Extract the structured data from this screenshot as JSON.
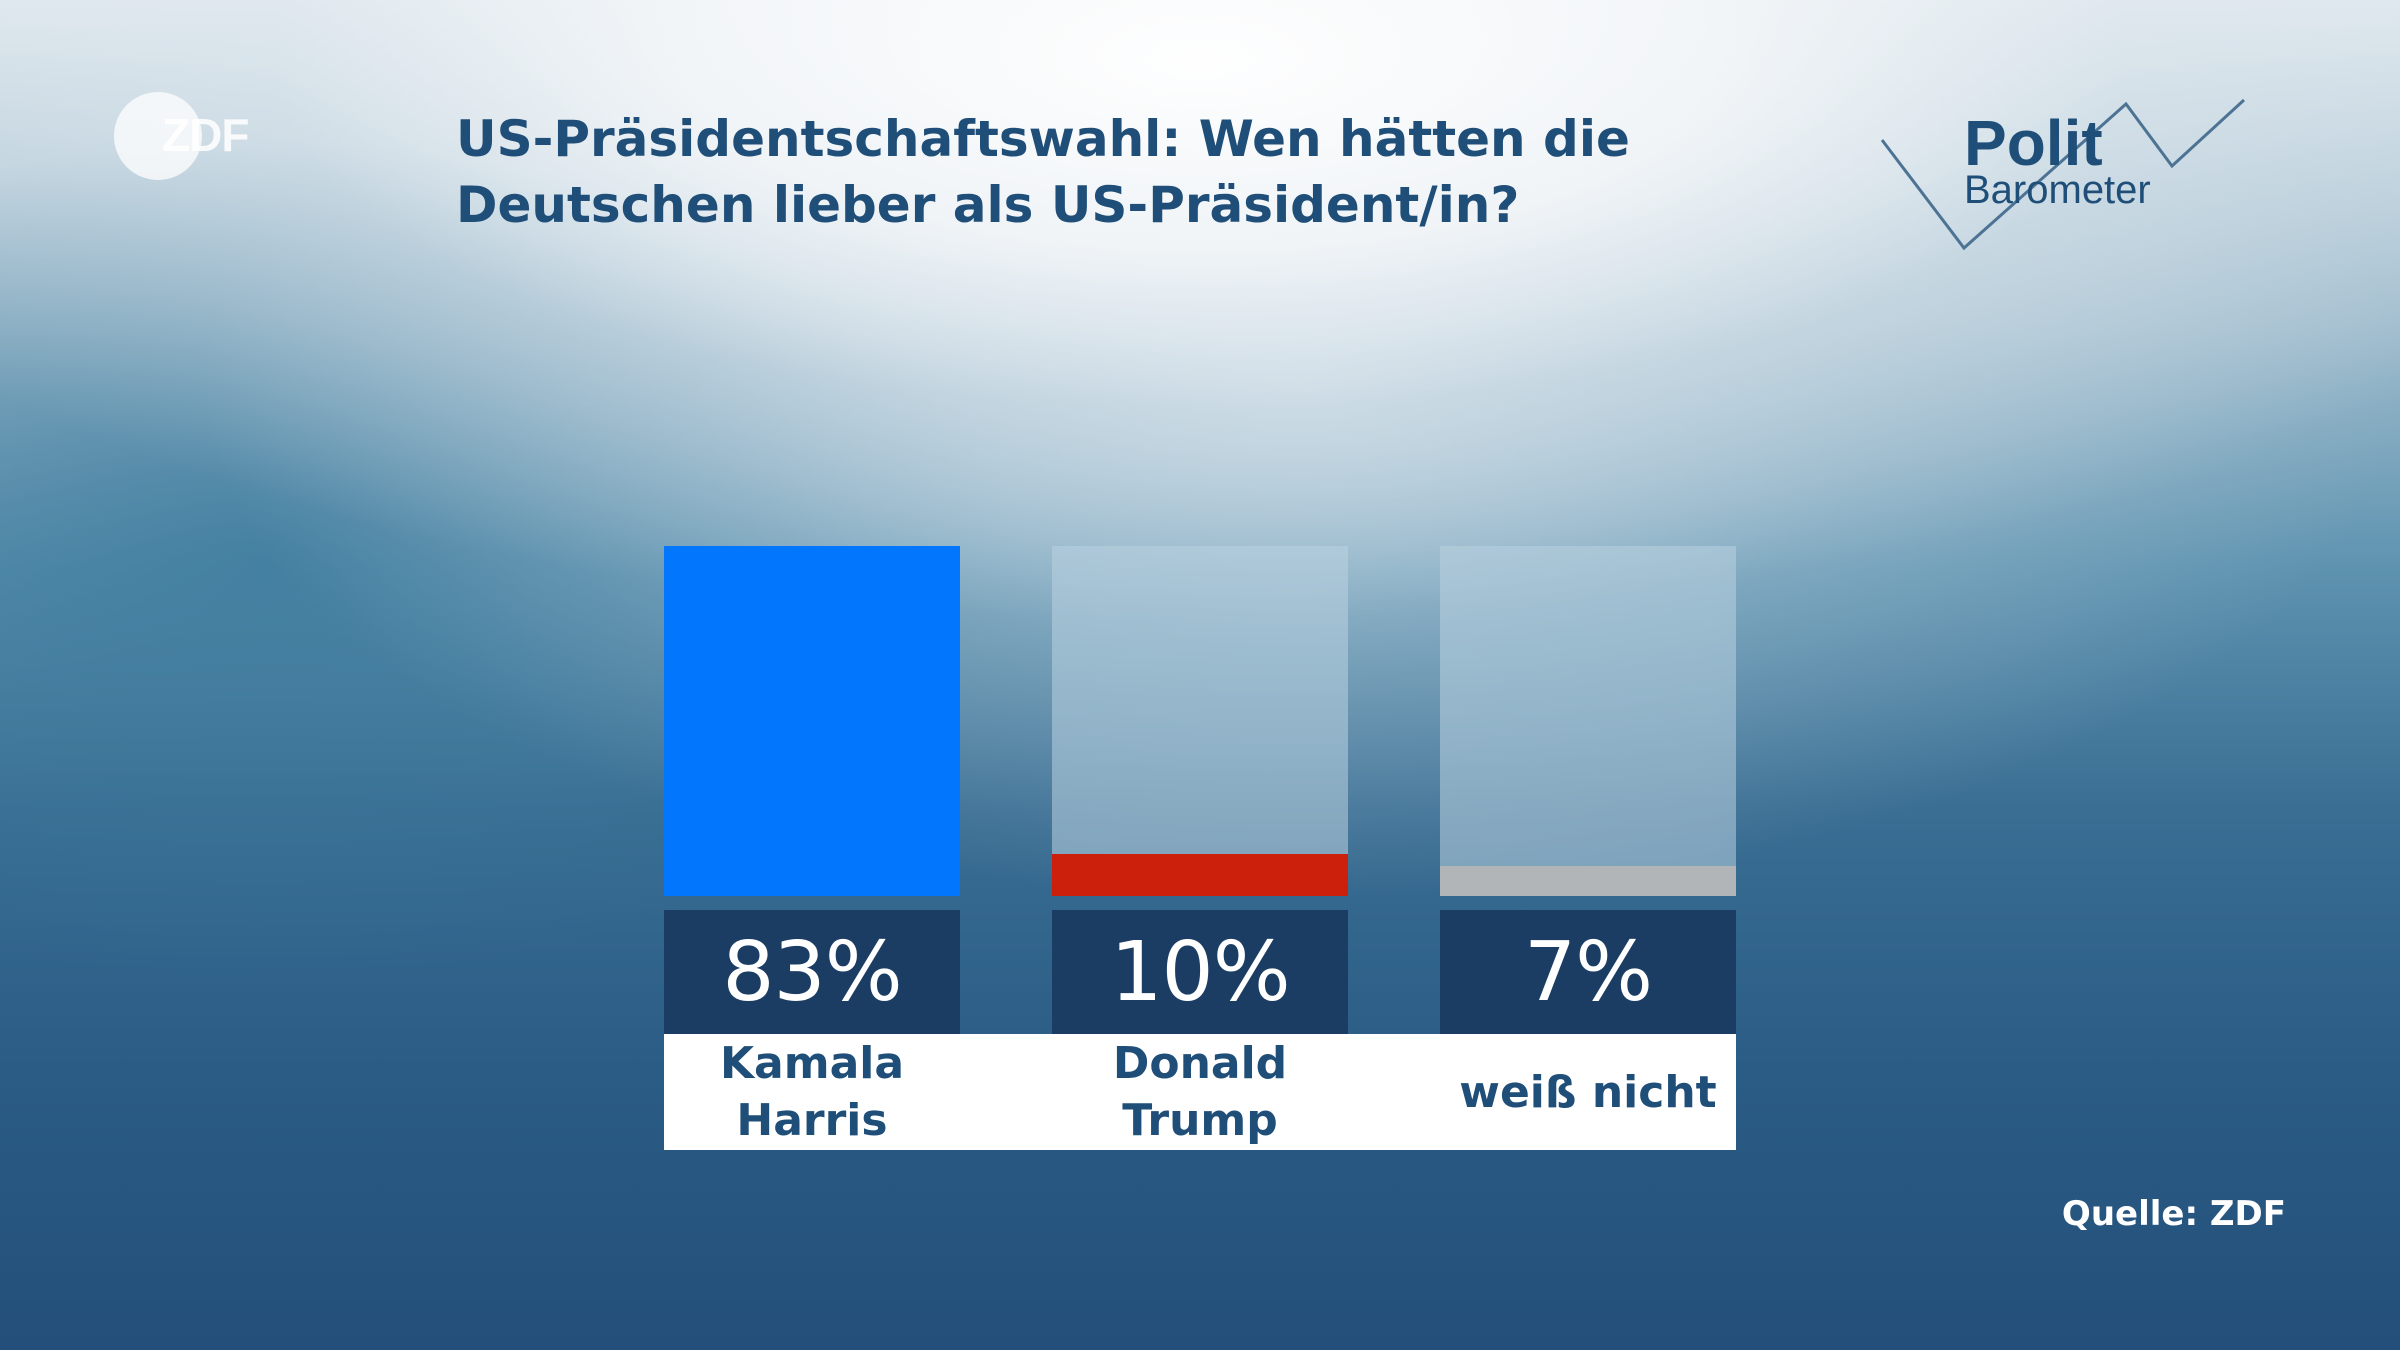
{
  "logo": {
    "text": "ZDF"
  },
  "header": {
    "title_line1": "US-Präsidentschaftswahl: Wen hätten die",
    "title_line2": "Deutschen lieber als US-Präsident/in?"
  },
  "polit_logo": {
    "line1": "Polit",
    "line2": "Barometer"
  },
  "colors": {
    "harris": "#0276fd",
    "trump": "#cc1f0c",
    "undecided": "#b1b5b8",
    "value_box": "#1b3d63",
    "text": "#1f4e78"
  },
  "chart_data": {
    "type": "bar",
    "title": "US-Präsidentschaftswahl: Wen hätten die Deutschen lieber als US-Präsident/in?",
    "categories": [
      "Kamala Harris",
      "Donald Trump",
      "weiß nicht"
    ],
    "values": [
      83,
      10,
      7
    ],
    "value_labels": [
      "83%",
      "10%",
      "7%"
    ],
    "label_lines": [
      [
        "Kamala",
        "Harris"
      ],
      [
        "Donald",
        "Trump"
      ],
      [
        "weiß nicht"
      ]
    ],
    "colors": [
      "#0276fd",
      "#cc1f0c",
      "#b1b5b8"
    ],
    "ylim": [
      0,
      83
    ],
    "xlabel": "",
    "ylabel": ""
  },
  "source": "Quelle: ZDF"
}
